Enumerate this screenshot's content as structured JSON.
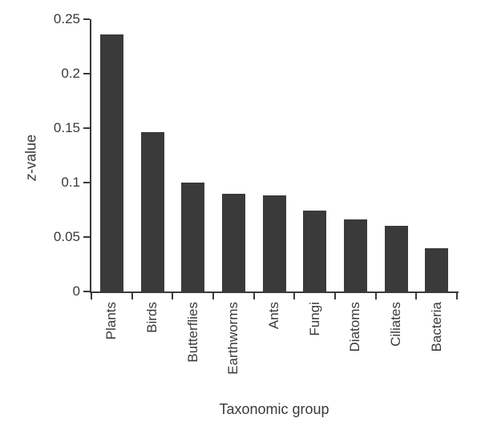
{
  "figure": {
    "background": "#ffffff"
  },
  "chart_data": {
    "type": "bar",
    "title": "",
    "xlabel": "Taxonomic group",
    "ylabel": "z-value",
    "ylabel_parts": [
      "z",
      "-value"
    ],
    "categories": [
      "Plants",
      "Birds",
      "Butterflies",
      "Earthworms",
      "Ants",
      "Fungi",
      "Diatoms",
      "Ciliates",
      "Bacteria"
    ],
    "values": [
      0.236,
      0.146,
      0.1,
      0.09,
      0.088,
      0.074,
      0.066,
      0.06,
      0.04
    ],
    "ylim": [
      0,
      0.25
    ],
    "yticks": [
      0,
      0.05,
      0.1,
      0.15,
      0.2,
      0.25
    ],
    "ytick_labels": [
      "0",
      "0.05",
      "0.1",
      "0.15",
      "0.2",
      "0.25"
    ],
    "grid": false,
    "legend": false,
    "bar_color": "#3a3a3a",
    "axis_color": "#3a3a3a",
    "text_color": "#3a3a3a"
  }
}
